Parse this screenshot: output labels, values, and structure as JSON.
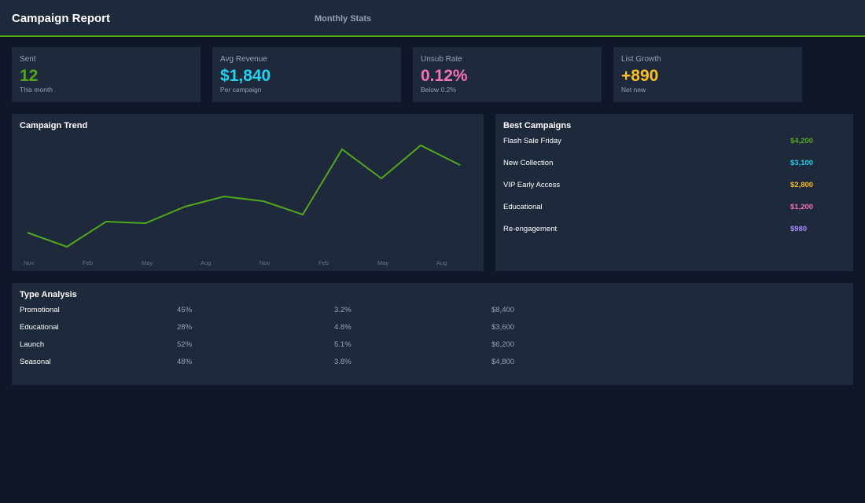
{
  "header": {
    "title": "Campaign Report",
    "subtitle": "Monthly Stats"
  },
  "stats": [
    {
      "label": "Sent",
      "value": "12",
      "sub": "This month",
      "color": "#52a81c"
    },
    {
      "label": "Avg Revenue",
      "value": "$1,840",
      "sub": "Per campaign",
      "color": "#22d3ee"
    },
    {
      "label": "Unsub Rate",
      "value": "0.12%",
      "sub": "Below 0.2%",
      "color": "#f472b6"
    },
    {
      "label": "List Growth",
      "value": "+890",
      "sub": "Net new",
      "color": "#fbbf24"
    }
  ],
  "trend": {
    "title": "Campaign Trend"
  },
  "chart_data": {
    "type": "line",
    "title": "Campaign Trend",
    "x_tick_labels": [
      "Nov",
      "Feb",
      "May",
      "Aug",
      "Nov",
      "Feb",
      "May",
      "Aug"
    ],
    "values": [
      34,
      16,
      48,
      46,
      67,
      80,
      74,
      57,
      140,
      103,
      145,
      120
    ],
    "color": "#52a81c",
    "grid": false
  },
  "best": {
    "title": "Best Campaigns",
    "items": [
      {
        "name": "Flash Sale Friday",
        "value": "$4,200",
        "color": "#52a81c"
      },
      {
        "name": "New Collection",
        "value": "$3,100",
        "color": "#22d3ee"
      },
      {
        "name": "VIP Early Access",
        "value": "$2,800",
        "color": "#fbbf24"
      },
      {
        "name": "Educational",
        "value": "$1,200",
        "color": "#f472b6"
      },
      {
        "name": "Re-engagement",
        "value": "$980",
        "color": "#a78bfa"
      }
    ]
  },
  "types": {
    "title": "Type Analysis",
    "rows": [
      [
        "Promotional",
        "45%",
        "3.2%",
        "$8,400"
      ],
      [
        "Educational",
        "28%",
        "4.8%",
        "$3,600"
      ],
      [
        "Launch",
        "52%",
        "5.1%",
        "$6,200"
      ],
      [
        "Seasonal",
        "48%",
        "3.8%",
        "$4,800"
      ]
    ]
  }
}
